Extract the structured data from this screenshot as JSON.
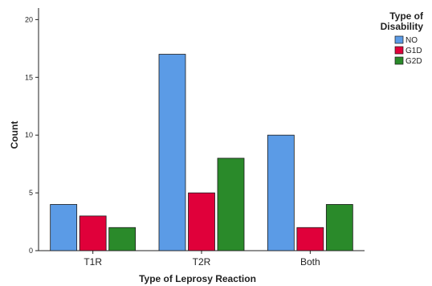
{
  "chart_data": {
    "type": "bar",
    "categories": [
      "T1R",
      "T2R",
      "Both"
    ],
    "series": [
      {
        "name": "NO",
        "values": [
          4,
          17,
          10
        ],
        "color": "#5b9be6"
      },
      {
        "name": "G1D",
        "values": [
          3,
          5,
          2
        ],
        "color": "#e0003a"
      },
      {
        "name": "G2D",
        "values": [
          2,
          8,
          4
        ],
        "color": "#2a8a2a"
      }
    ],
    "title": "",
    "xlabel": "Type of Leprosy Reaction",
    "ylabel": "Count",
    "ylim": [
      0,
      21
    ],
    "yticks": [
      0,
      5,
      10,
      15,
      20
    ],
    "grid": false,
    "legend": {
      "title_lines": [
        "Type of",
        "Disability"
      ],
      "position": "top-right"
    }
  }
}
